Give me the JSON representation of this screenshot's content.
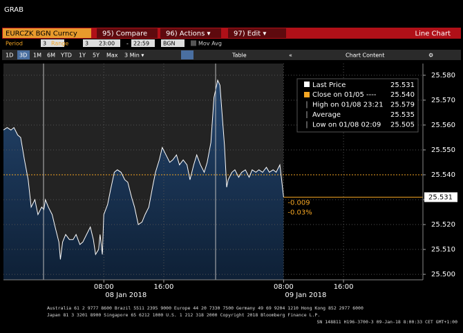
{
  "header": {
    "title": "GRAB"
  },
  "toolbar": {
    "security": "EURCZK BGN Curncy",
    "buttons": [
      "95) Compare",
      "96) Actions ▾",
      "97) Edit ▾"
    ],
    "view": "Line Chart"
  },
  "settings": {
    "period_label": "Period",
    "period": "3",
    "range_label": "Range",
    "range": "3",
    "start": "23:00",
    "dash": "-",
    "end": "22:59",
    "source": "BGN",
    "mov_avg": "Mov Avg"
  },
  "timeframes": [
    "1D",
    "3D",
    "1M",
    "6M",
    "YTD",
    "1Y",
    "5Y",
    "Max",
    "3 Min ▾"
  ],
  "table": "Table",
  "panel": "Chart Content",
  "chart_data": {
    "type": "line",
    "x": [
      -5.4,
      -4.9,
      -4.4,
      -4.0,
      -3.5,
      -3.1,
      -2.6,
      -2.1,
      -1.7,
      -1.2,
      -0.8,
      -0.3,
      0.0,
      0.2,
      0.6,
      1.1,
      1.5,
      2.0,
      2.2,
      2.5,
      2.9,
      3.4,
      3.9,
      4.3,
      4.8,
      5.2,
      5.7,
      6.2,
      6.6,
      6.9,
      7.3,
      7.5,
      7.8,
      8.0,
      8.5,
      8.9,
      9.4,
      9.8,
      10.3,
      10.8,
      11.2,
      11.7,
      12.1,
      12.6,
      13.1,
      13.5,
      14.0,
      14.5,
      14.9,
      15.4,
      15.8,
      16.3,
      16.8,
      17.2,
      17.7,
      18.1,
      18.6,
      19.1,
      19.5,
      20.0,
      20.4,
      20.9,
      21.4,
      21.8,
      22.3,
      22.7,
      23.2,
      23.5,
      23.9,
      24.1,
      24.4,
      24.6,
      25.1,
      25.5,
      26.0,
      26.4,
      26.9,
      27.4,
      27.8,
      28.3,
      28.7,
      29.2,
      29.7,
      30.1,
      30.6,
      31.0,
      31.5,
      32.0
    ],
    "series": [
      {
        "name": "Last Price",
        "color": "#ffffff",
        "values": [
          25.558,
          25.559,
          25.558,
          25.559,
          25.556,
          25.555,
          25.546,
          25.538,
          25.527,
          25.53,
          25.524,
          25.527,
          25.526,
          25.53,
          25.527,
          25.524,
          25.519,
          25.513,
          25.506,
          25.513,
          25.516,
          25.514,
          25.514,
          25.516,
          25.512,
          25.513,
          25.516,
          25.519,
          25.514,
          25.508,
          25.51,
          25.516,
          25.508,
          25.524,
          25.528,
          25.534,
          25.541,
          25.542,
          25.541,
          25.538,
          25.537,
          25.531,
          25.527,
          25.52,
          25.521,
          25.524,
          25.527,
          25.535,
          25.541,
          25.546,
          25.551,
          25.548,
          25.545,
          25.546,
          25.548,
          25.544,
          25.546,
          25.544,
          25.538,
          25.544,
          25.548,
          25.544,
          25.541,
          25.545,
          25.553,
          25.571,
          25.578,
          25.576,
          25.56,
          25.552,
          25.535,
          25.538,
          25.541,
          25.542,
          25.539,
          25.541,
          25.542,
          25.539,
          25.542,
          25.541,
          25.542,
          25.541,
          25.543,
          25.541,
          25.542,
          25.541,
          25.544,
          25.531
        ]
      }
    ],
    "last_label": "25.531",
    "legend_stats": [
      {
        "name": "Close on 01/05 ----",
        "value": "25.540"
      },
      {
        "name": "High on 01/08 23:21",
        "value": "25.579"
      },
      {
        "name": "Average",
        "value": "25.535"
      },
      {
        "name": "Low on 01/08 02:09",
        "value": "25.505"
      }
    ],
    "reference_line": {
      "value": 25.54,
      "color": "#f5a623"
    },
    "annotations": [
      "-0.009",
      "-0.03%"
    ],
    "date_labels": [
      "08 Jan 2018",
      "09 Jan 2018"
    ],
    "xlim": [
      -5.4,
      50.6
    ],
    "xticks": [
      {
        "value": 8,
        "label": "08:00"
      },
      {
        "value": 16,
        "label": "16:00"
      },
      {
        "value": 32,
        "label": "08:00"
      },
      {
        "value": 40,
        "label": "16:00"
      }
    ],
    "ylim": [
      25.4978,
      25.5847
    ],
    "yticks": [
      {
        "value": 25.5,
        "label": "25.500"
      },
      {
        "value": 25.51,
        "label": "25.510"
      },
      {
        "value": 25.52,
        "label": "25.520"
      },
      {
        "value": 25.53,
        "label": "25.530"
      },
      {
        "value": 25.54,
        "label": "25.540"
      },
      {
        "value": 25.55,
        "label": "25.550"
      },
      {
        "value": 25.56,
        "label": "25.560"
      },
      {
        "value": 25.57,
        "label": "25.570"
      },
      {
        "value": 25.58,
        "label": "25.580"
      }
    ],
    "grid": true
  },
  "footer": [
    "Australia 61 2 9777 8600 Brazil 5511 2395 9000 Europe 44 20 7330 7500 Germany 49 69 9204 1210 Hong Kong 852 2977 6000",
    "Japan 81 3 3201 8900      Singapore 65 6212 1000      U.S. 1 212 318 2000      Copyright 2018 Bloomberg Finance L.P.",
    "SN 148811 H196-3700-3 09-Jan-18  8:00:33 CET  GMT+1:00"
  ]
}
